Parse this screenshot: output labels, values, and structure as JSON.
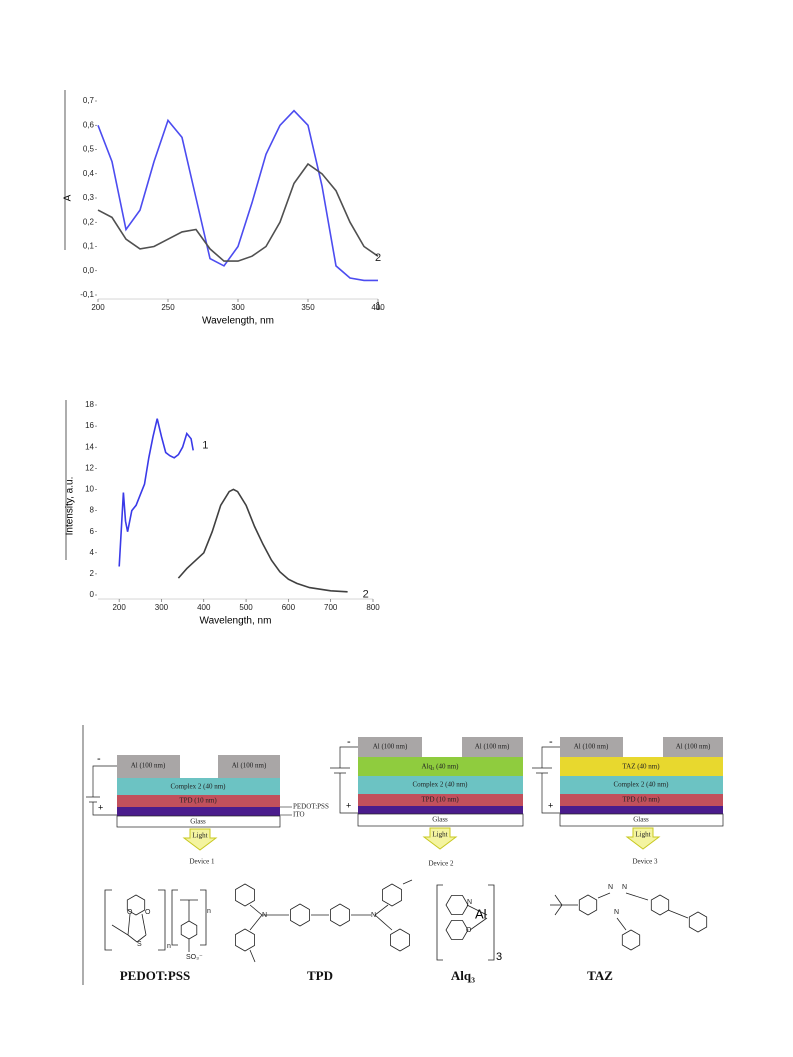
{
  "chart_data": [
    {
      "type": "line",
      "xlabel": "Wavelength, nm",
      "ylabel": "A",
      "x": [
        200,
        210,
        220,
        230,
        240,
        250,
        260,
        270,
        280,
        290,
        300,
        310,
        320,
        330,
        340,
        350,
        360,
        370,
        380,
        390,
        400
      ],
      "series": [
        {
          "name": "1",
          "color": "#4c4cf0",
          "values": [
            0.6,
            0.45,
            0.17,
            0.25,
            0.45,
            0.62,
            0.55,
            0.3,
            0.05,
            0.02,
            0.1,
            0.28,
            0.48,
            0.6,
            0.66,
            0.6,
            0.35,
            0.02,
            -0.03,
            -0.04,
            -0.04
          ]
        },
        {
          "name": "2",
          "color": "#505050",
          "values": [
            0.25,
            0.22,
            0.13,
            0.09,
            0.1,
            0.13,
            0.16,
            0.17,
            0.09,
            0.04,
            0.04,
            0.06,
            0.1,
            0.2,
            0.36,
            0.44,
            0.4,
            0.33,
            0.2,
            0.1,
            0.06
          ]
        }
      ],
      "xlim": [
        200,
        400
      ],
      "xticks": [
        200,
        250,
        300,
        350,
        400
      ],
      "ylim": [
        -0.1,
        0.7
      ],
      "yticks": [
        {
          "value": -0.1,
          "label": "-0,1"
        },
        {
          "value": 0,
          "label": "0,0"
        },
        {
          "value": 0.1,
          "label": "0,1"
        },
        {
          "value": 0.2,
          "label": "0,2"
        },
        {
          "value": 0.3,
          "label": "0,3"
        },
        {
          "value": 0.4,
          "label": "0,4"
        },
        {
          "value": 0.5,
          "label": "0,5"
        },
        {
          "value": 0.6,
          "label": "0,6"
        },
        {
          "value": 0.7,
          "label": "0,7"
        }
      ]
    },
    {
      "type": "line",
      "xlabel": "Wavelength, nm",
      "ylabel": "Intensity, a.u.",
      "series": [
        {
          "name": "1",
          "color": "#3a3ae8",
          "x": [
            200,
            210,
            215,
            220,
            230,
            240,
            250,
            260,
            270,
            280,
            290,
            300,
            310,
            320,
            330,
            340,
            350,
            360,
            370,
            375
          ],
          "values": [
            2.7,
            9.7,
            7,
            6,
            8,
            8.5,
            9.5,
            10.5,
            13,
            15,
            16.7,
            15,
            13.5,
            13.2,
            13,
            13.3,
            14,
            15.3,
            14.8,
            13.7
          ]
        },
        {
          "name": "2",
          "color": "#404040",
          "x": [
            340,
            360,
            400,
            420,
            440,
            460,
            470,
            480,
            500,
            520,
            540,
            560,
            580,
            600,
            620,
            650,
            700,
            740
          ],
          "values": [
            1.6,
            2.5,
            4,
            6,
            8.5,
            9.8,
            10,
            9.8,
            8.5,
            6.5,
            4.8,
            3.3,
            2.2,
            1.5,
            1.1,
            0.7,
            0.4,
            0.3
          ]
        }
      ],
      "xlim": [
        150,
        800
      ],
      "xticks": [
        200,
        300,
        400,
        500,
        600,
        700,
        800
      ],
      "ylim": [
        0,
        18
      ],
      "yticks": [
        0,
        2,
        4,
        6,
        8,
        10,
        12,
        14,
        16,
        18
      ]
    }
  ],
  "devices": [
    {
      "name": "Device 1",
      "al_left": "Al (100 nm)",
      "al_right": "Al (100 nm)",
      "complex": "Complex 2  (40 nm)",
      "tpd": "TPD  (10 nm)",
      "glass": "Glass",
      "light": "Light",
      "minus": "-",
      "plus": "+",
      "pedot": "PEDOT:PSS",
      "ito": "ITO"
    },
    {
      "name": "Device 2",
      "al_left": "Al (100 nm)",
      "al_right": "Al (100 nm)",
      "extra": "Alq₃ (40 nm)",
      "complex": "Complex 2  (40 nm)",
      "tpd": "TPD  (10 nm)",
      "glass": "Glass",
      "light": "Light",
      "minus": "-",
      "plus": "+"
    },
    {
      "name": "Device 3",
      "al_left": "Al (100 nm)",
      "al_right": "Al (100 nm)",
      "extra": "TAZ (40 nm)",
      "complex": "Complex 2  (40 nm)",
      "tpd": "TPD  (10 nm)",
      "glass": "Glass",
      "light": "Light",
      "minus": "-",
      "plus": "+"
    }
  ],
  "molecules": [
    {
      "name": "PEDOT:PSS",
      "atoms": [
        "O",
        "O",
        "S",
        "n",
        "n",
        "SO₃⁻"
      ]
    },
    {
      "name": "TPD",
      "atoms": [
        "N",
        "N"
      ]
    },
    {
      "name": "Alq₃",
      "atoms": [
        "N",
        "O",
        "Al",
        "3"
      ]
    },
    {
      "name": "TAZ",
      "atoms": [
        "N",
        "N",
        "N"
      ]
    }
  ]
}
